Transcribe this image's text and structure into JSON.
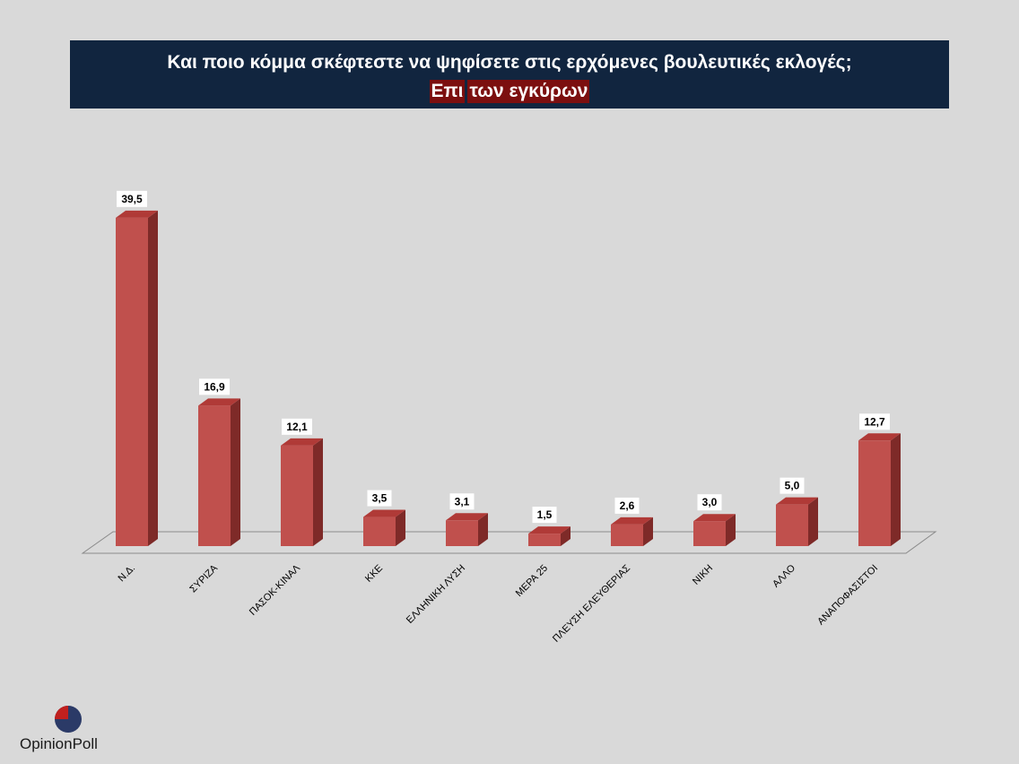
{
  "header": {
    "title_line1": "Και ποιο κόμμα σκέφτεστε να ψηφίσετε  στις ερχόμενες βουλευτικές εκλογές;",
    "title_line2_a": "Επι",
    "title_line2_b": "των εγκύρων"
  },
  "chart_data": {
    "type": "bar",
    "title": "Και ποιο κόμμα σκέφτεστε να ψηφίσετε  στις ερχόμενες βουλευτικές εκλογές; Επι των εγκύρων",
    "categories": [
      "Ν.Δ.",
      "ΣΥΡΙΖΑ",
      "ΠΑΣΟΚ-ΚΙΝΑΛ",
      "ΚΚΕ",
      "ΕΛΛΗΝΙΚΗ ΛΥΣΗ",
      "ΜΕΡΑ 25",
      "ΠΛΕΥΣΗ ΕΛΕΥΘΕΡΙΑΣ",
      "ΝΙΚΗ",
      "ΑΛΛΟ",
      "ΑΝΑΠΟΦΑΣΙΣΤΟΙ"
    ],
    "values": [
      39.5,
      16.9,
      12.1,
      3.5,
      3.1,
      1.5,
      2.6,
      3.0,
      5.0,
      12.7
    ],
    "value_labels": [
      "39,5",
      "16,9",
      "12,1",
      "3,5",
      "3,1",
      "1,5",
      "2,6",
      "3,0",
      "5,0",
      "12,7"
    ],
    "xlabel": "",
    "ylabel": "",
    "ylim": [
      0,
      40
    ],
    "grid": false,
    "legend": "none",
    "style": "3d-column",
    "colors": {
      "bar_front": "#c0504d",
      "bar_top": "#b03a37",
      "bar_side": "#7e2a28",
      "label_box": "#ffffff"
    }
  },
  "logo": {
    "text": "OpinionPoll",
    "colors": {
      "red": "#c0201e",
      "navy": "#2b3a67"
    }
  }
}
